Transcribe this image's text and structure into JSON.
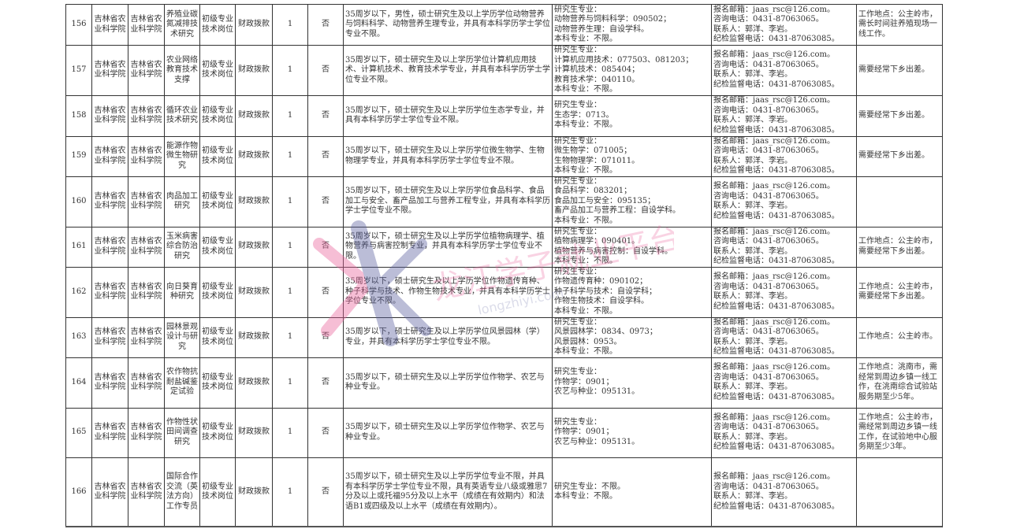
{
  "rows": [
    {
      "no": "156",
      "unit": "吉林省农业科学院",
      "dept": "吉林省农业科学院",
      "post": "养殖业碳氮减排技术研究",
      "category": "初级专业技术岗位",
      "funding": "财政拨款",
      "count": "1",
      "flag": "否",
      "conditions": "35周岁以下，男性，硕士研究生及以上学历学位动物营养与饲料科学、动物营养生理专业，并具有本科学历学士学位专业不限。",
      "majors": [
        "研究生专业：",
        "动物营养与饲料科学：090502；",
        "动物营养生理：自设学科。",
        "本科专业：不限。"
      ],
      "contact": [
        "报名邮箱：jaas_rsc@126.com。",
        "咨询电话：0431-87063065。",
        "联系人：郭洋、李岩。",
        "纪检监督电话：0431-87063085。"
      ],
      "remark": "工作地点：公主岭市，需长时间驻养殖现场一线工作。"
    },
    {
      "no": "157",
      "unit": "吉林省农业科学院",
      "dept": "吉林省农业科学院",
      "post": "农业网络教育技术支撑",
      "category": "初级专业技术岗位",
      "funding": "财政拨款",
      "count": "1",
      "flag": "否",
      "conditions": "35周岁以下，硕士研究生及以上学历学位计算机应用技术、计算机技术、教育技术学专业，并具有本科学历学士学位专业不限。",
      "majors": [
        "研究生专业：",
        "计算机应用技术：077503、081203；",
        "计算机技术：085404；",
        "教育技术学：040110。",
        "本科专业：不限。"
      ],
      "contact": [
        "报名邮箱：jaas_rsc@126.com。",
        "咨询电话：0431-87063065。",
        "联系人：郭洋、李岩。",
        "纪检监督电话：0431-87063085。"
      ],
      "remark": "需要经常下乡出差。"
    },
    {
      "no": "158",
      "unit": "吉林省农业科学院",
      "dept": "吉林省农业科学院",
      "post": "循环农业技术研究",
      "category": "初级专业技术岗位",
      "funding": "财政拨款",
      "count": "1",
      "flag": "否",
      "conditions": "35周岁以下，硕士研究生及以上学历学位生态学专业，并具有本科学历学士学位专业不限。",
      "majors": [
        "研究生专业：",
        "生态学：0713。",
        "本科专业：不限。"
      ],
      "contact": [
        "报名邮箱：jaas_rsc@126.com。",
        "咨询电话：0431-87063065。",
        "联系人：郭洋、李岩。",
        "纪检监督电话：0431-87063085。"
      ],
      "remark": "需要经常下乡出差。"
    },
    {
      "no": "159",
      "unit": "吉林省农业科学院",
      "dept": "吉林省农业科学院",
      "post": "能源作物微生物研究",
      "category": "初级专业技术岗位",
      "funding": "财政拨款",
      "count": "1",
      "flag": "否",
      "conditions": "35周岁以下，硕士研究生及以上学历学位微生物学、生物物理学专业，并具有本科学历学士学位专业不限。",
      "majors": [
        "研究生专业：",
        "微生物学：071005；",
        "生物物理学：071011。",
        "本科专业：不限。"
      ],
      "contact": [
        "报名邮箱：jaas_rsc@126.com。",
        "咨询电话：0431-87063065。",
        "联系人：郭洋、李岩。",
        "纪检监督电话：0431-87063085。"
      ],
      "remark": "需要经常下乡出差。"
    },
    {
      "no": "160",
      "unit": "吉林省农业科学院",
      "dept": "吉林省农业科学院",
      "post": "肉品加工研究",
      "category": "初级专业技术岗位",
      "funding": "财政拨款",
      "count": "1",
      "flag": "否",
      "conditions": "35周岁以下，硕士研究生及以上学历学位食品科学、食品加工与安全、畜产品加工与营养工程专业，并具有本科学历学士学位专业不限。",
      "majors": [
        "研究生专业：",
        "食品科学：083201；",
        "食品加工与安全：095135；",
        "畜产品加工与营养工程：自设学科。",
        "本科专业：不限。"
      ],
      "contact": [
        "报名邮箱：jaas_rsc@126.com。",
        "咨询电话：0431-87063065。",
        "联系人：郭洋、李岩。",
        "纪检监督电话：0431-87063085。"
      ],
      "remark": ""
    },
    {
      "no": "161",
      "unit": "吉林省农业科学院",
      "dept": "吉林省农业科学院",
      "post": "玉米病害综合防治研究",
      "category": "初级专业技术岗位",
      "funding": "财政拨款",
      "count": "1",
      "flag": "否",
      "conditions": "35周岁以下，硕士研究生及以上学历学位植物病理学、植物营养与病害控制专业，并具有本科学历学士学位专业不限。",
      "majors": [
        "研究生专业：",
        "植物病理学：090401。",
        "植物营养与病害控制：自设学科。",
        "本科专业：不限。"
      ],
      "contact": [
        "报名邮箱：jaas_rsc@126.com。",
        "咨询电话：0431-87063065。",
        "联系人：郭洋、李岩。",
        "纪检监督电话：0431-87063085。"
      ],
      "remark": "工作地点：公主岭市，需要经常下乡出差。"
    },
    {
      "no": "162",
      "unit": "吉林省农业科学院",
      "dept": "吉林省农业科学院",
      "post": "向日葵育种研究",
      "category": "初级专业技术岗位",
      "funding": "财政拨款",
      "count": "1",
      "flag": "否",
      "conditions": "35周岁以下，硕士研究生及以上学历学位作物遗传育种、种子科学与技术、作物生物技术专业，并具有本科学历学士学位专业不限。",
      "majors": [
        "研究生专业：",
        "作物遗传育种：090102；",
        "种子科学与技术：自设学科；",
        "作物生物技术：自设学科。",
        "本科专业：不限。"
      ],
      "contact": [
        "报名邮箱：jaas_rsc@126.com。",
        "咨询电话：0431-87063065。",
        "联系人：郭洋、李岩。",
        "纪检监督电话：0431-87063085。"
      ],
      "remark": "工作地点：公主岭市，需要经常下乡出差。"
    },
    {
      "no": "163",
      "unit": "吉林省农业科学院",
      "dept": "吉林省农业科学院",
      "post": "园林景观设计与研究",
      "category": "初级专业技术岗位",
      "funding": "财政拨款",
      "count": "1",
      "flag": "否",
      "conditions": "35周岁以下，硕士研究生及以上学历学位风景园林（学）专业，并具有本科学历学士学位专业不限。",
      "majors": [
        "研究生专业：",
        "风景园林学：0834、0973；",
        "风景园林：0953。",
        "本科专业：不限。"
      ],
      "contact": [
        "报名邮箱：jaas_rsc@126.com。",
        "咨询电话：0431-87063065。",
        "联系人：郭洋、李岩。",
        "纪检监督电话：0431-87063085。"
      ],
      "remark": "工作地点：公主岭市。"
    },
    {
      "no": "164",
      "unit": "吉林省农业科学院",
      "dept": "吉林省农业科学院",
      "post": "农作物抗耐盐碱鉴定试验",
      "category": "初级专业技术岗位",
      "funding": "财政拨款",
      "count": "1",
      "flag": "否",
      "conditions": "35周岁以下，硕士研究生及以上学历学位作物学、农艺与种业专业。",
      "majors": [
        "研究生专业：",
        "作物学：0901；",
        "农艺与种业：095131。"
      ],
      "contact": [
        "报名邮箱：jaas_rsc@126.com。",
        "咨询电话：0431-87063065。",
        "联系人：郭洋、李岩。",
        "纪检监督电话：0431-87063085。"
      ],
      "remark": "工作地点：洮南市，需经常到周边乡镇一线工作，在洮南综合试验站服务期至少5年。"
    },
    {
      "no": "165",
      "unit": "吉林省农业科学院",
      "dept": "吉林省农业科学院",
      "post": "作物性状田间调查研究",
      "category": "初级专业技术岗位",
      "funding": "财政拨款",
      "count": "1",
      "flag": "否",
      "conditions": "35周岁以下，硕士研究生及以上学历学位作物学、农艺与种业专业。",
      "majors": [
        "研究生专业：",
        "作物学：0901；",
        "农艺与种业：095131。"
      ],
      "contact": [
        "报名邮箱：jaas_rsc@126.com。",
        "咨询电话：0431-87063065。",
        "联系人：郭洋、李岩。",
        "纪检监督电话：0431-87063085。"
      ],
      "remark": "工作地点：公主岭市，需经常到周边乡镇一线工作，在试验地中心服务期至少3年。"
    },
    {
      "no": "166",
      "unit": "吉林省农业科学院",
      "dept": "吉林省农业科学院",
      "post": "国际合作交流（英法方向）工作专员",
      "category": "初级专业技术岗位",
      "funding": "财政拨款",
      "count": "1",
      "flag": "否",
      "conditions": "35周岁以下，硕士研究生及以上学历学位专业不限，并具有本科学历学士学位专业不限，具有英语专业八级或雅思7分及以上或托福95分及以上水平（成绩在有效期内）和法语B1或四级及以上水平（成绩在有效期内）。",
      "majors": [
        "研究生专业：不限。",
        "本科专业：不限。"
      ],
      "contact": [
        "报名邮箱：jaas_rsc@126.com。",
        "咨询电话：0431-87063065。",
        "联系人：郭洋、李岩。",
        "纪检监督电话：0431-87063085。"
      ],
      "remark": ""
    }
  ],
  "watermark": {
    "text": "龙江学子就业平台",
    "url_text": "longzhiyi.com",
    "colors": [
      "#e8609a",
      "#5a5f9e"
    ]
  }
}
